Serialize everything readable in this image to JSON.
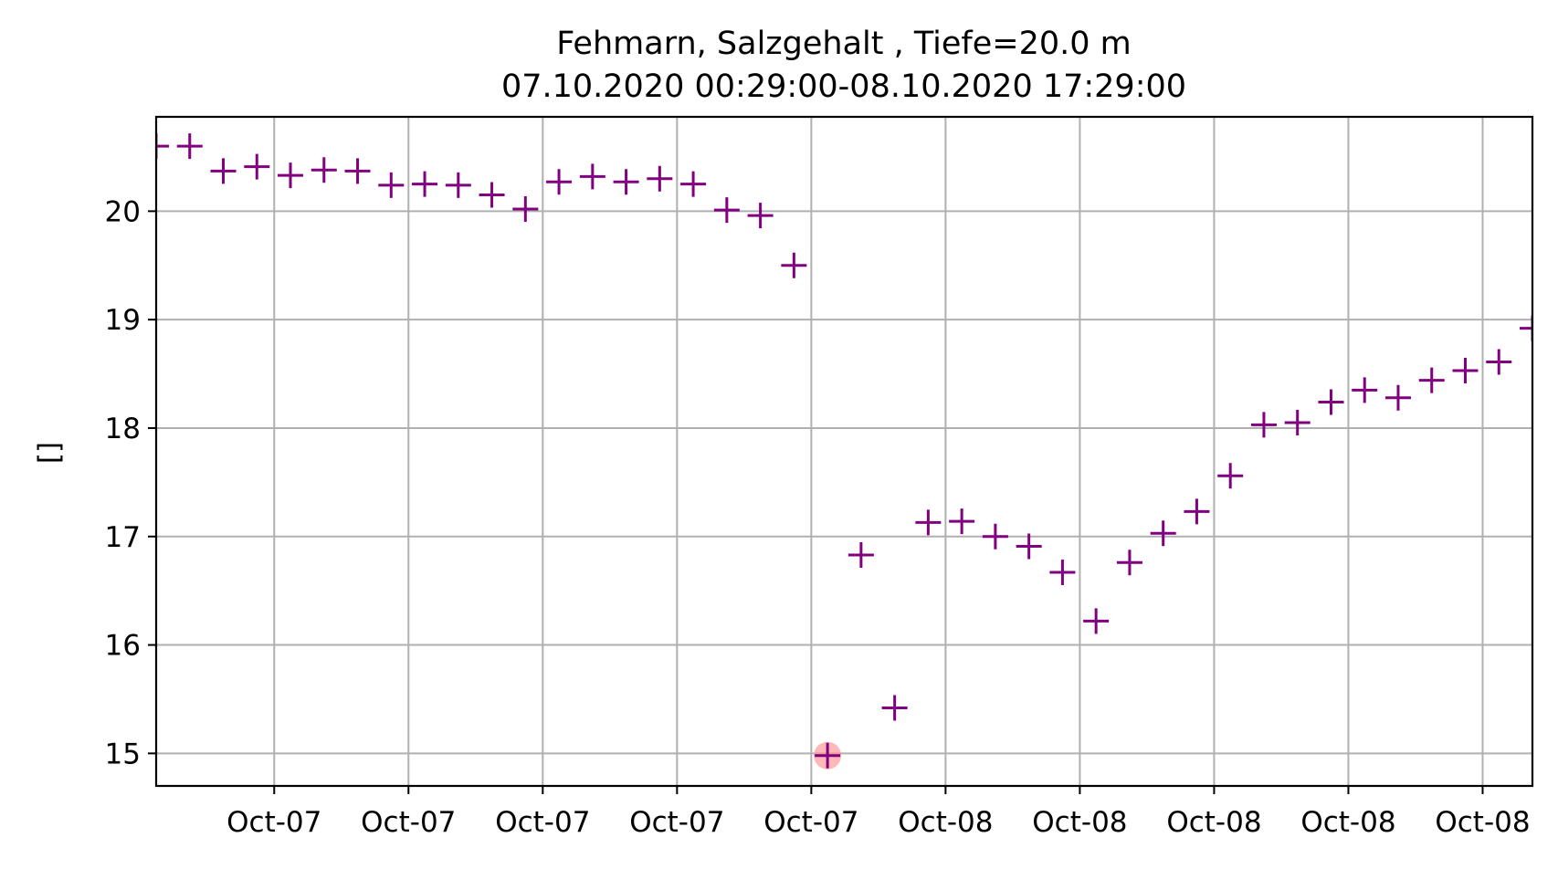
{
  "chart_data": {
    "type": "scatter",
    "title": "Fehmarn, Salzgehalt , Tiefe=20.0 m",
    "subtitle": "07.10.2020 00:29:00-08.10.2020 17:29:00",
    "xlabel": "",
    "ylabel": "[]",
    "ylim": [
      14.7,
      20.87
    ],
    "xlim": [
      "2020-10-07 00:29",
      "2020-10-08 17:29"
    ],
    "grid": true,
    "marker": "+",
    "marker_color": "#800080",
    "highlight_color": "#ff9999",
    "x_ticks": [
      "Oct-07",
      "Oct-07",
      "Oct-07",
      "Oct-07",
      "Oct-07",
      "Oct-08",
      "Oct-08",
      "Oct-08",
      "Oct-08",
      "Oct-08"
    ],
    "y_ticks": [
      15,
      16,
      17,
      18,
      19,
      20
    ],
    "x": [
      "2020-10-07 00:29",
      "2020-10-07 01:29",
      "2020-10-07 02:29",
      "2020-10-07 03:29",
      "2020-10-07 04:29",
      "2020-10-07 05:29",
      "2020-10-07 06:29",
      "2020-10-07 07:29",
      "2020-10-07 08:29",
      "2020-10-07 09:29",
      "2020-10-07 10:29",
      "2020-10-07 11:29",
      "2020-10-07 12:29",
      "2020-10-07 13:29",
      "2020-10-07 14:29",
      "2020-10-07 15:29",
      "2020-10-07 16:29",
      "2020-10-07 17:29",
      "2020-10-07 18:29",
      "2020-10-07 19:29",
      "2020-10-07 20:29",
      "2020-10-07 21:29",
      "2020-10-07 22:29",
      "2020-10-07 23:29",
      "2020-10-08 00:29",
      "2020-10-08 01:29",
      "2020-10-08 02:29",
      "2020-10-08 03:29",
      "2020-10-08 04:29",
      "2020-10-08 05:29",
      "2020-10-08 06:29",
      "2020-10-08 07:29",
      "2020-10-08 08:29",
      "2020-10-08 09:29",
      "2020-10-08 10:29",
      "2020-10-08 11:29",
      "2020-10-08 12:29",
      "2020-10-08 13:29",
      "2020-10-08 14:29",
      "2020-10-08 15:29",
      "2020-10-08 16:29",
      "2020-10-08 17:29"
    ],
    "y": [
      20.6,
      20.6,
      20.37,
      20.41,
      20.33,
      20.38,
      20.37,
      20.24,
      20.25,
      20.24,
      20.15,
      20.02,
      20.27,
      20.32,
      20.27,
      20.3,
      20.25,
      20.01,
      19.96,
      19.5,
      14.98,
      16.83,
      15.42,
      17.13,
      17.14,
      17.0,
      16.91,
      16.67,
      16.22,
      16.76,
      17.03,
      17.23,
      17.56,
      18.03,
      18.05,
      18.24,
      18.35,
      18.28,
      18.44,
      18.53,
      18.61,
      18.92
    ],
    "highlight_index": 20
  }
}
